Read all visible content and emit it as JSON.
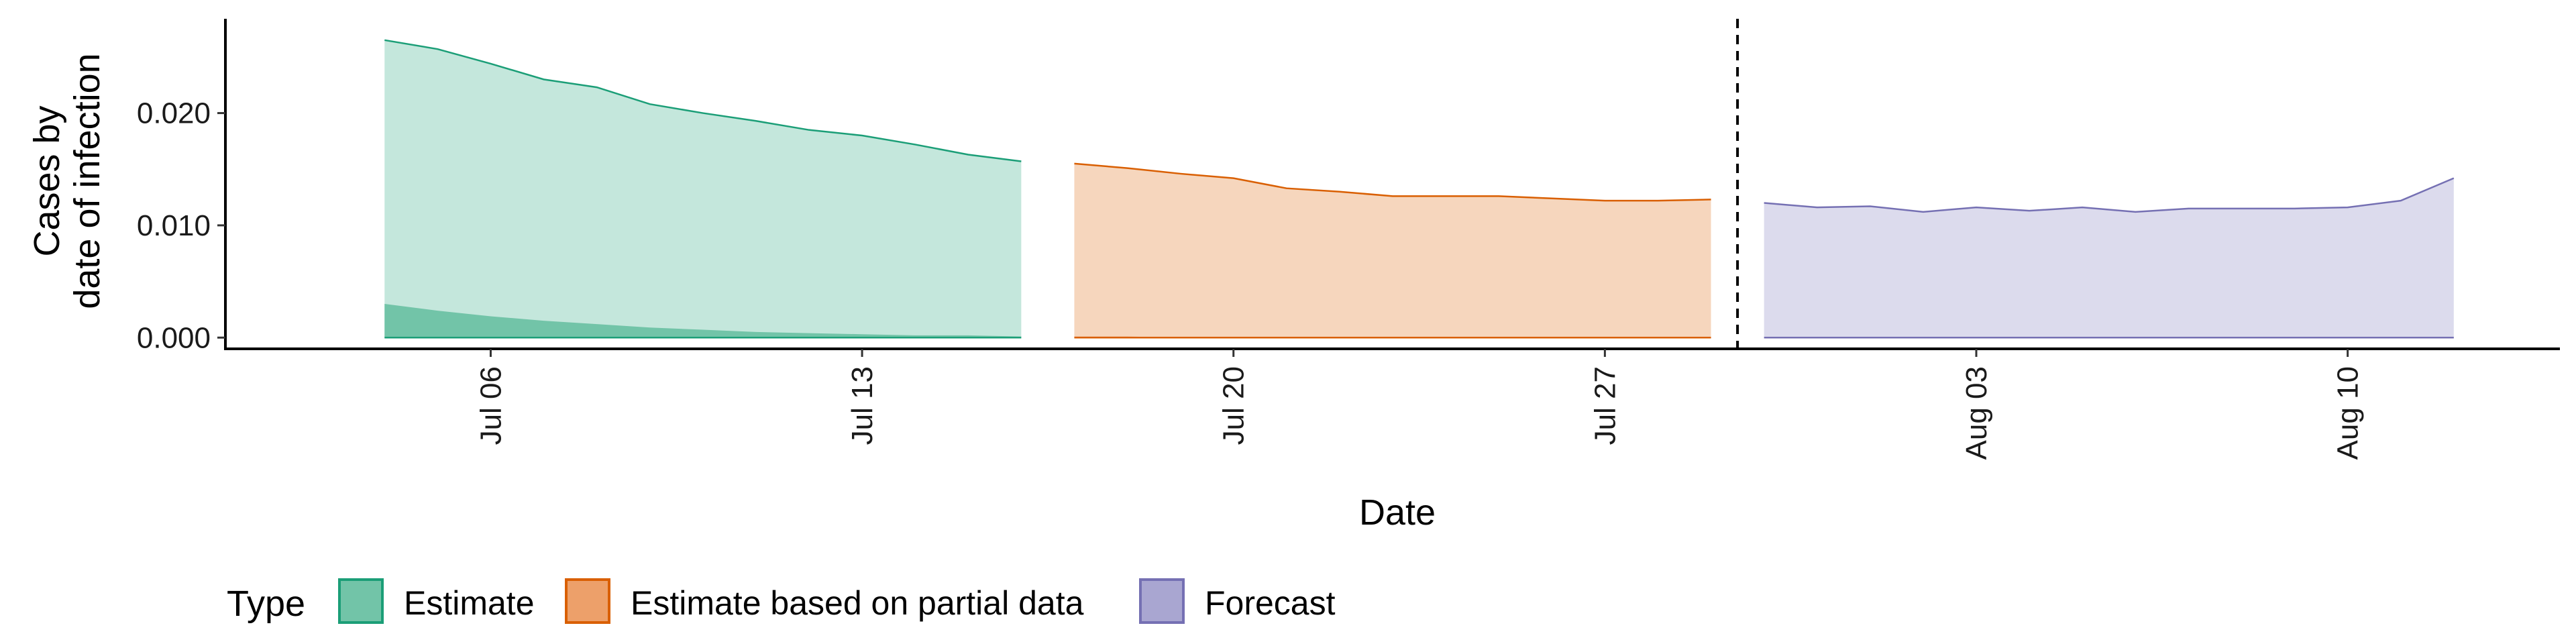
{
  "chart_data": {
    "type": "area",
    "xlabel": "Date",
    "ylabel_lines": [
      "Cases by",
      "date of infection"
    ],
    "y_ticks": [
      0.0,
      0.01,
      0.02
    ],
    "y_tick_labels": [
      "0.000",
      "0.010",
      "0.020"
    ],
    "ylim": [
      -0.001,
      0.0284
    ],
    "x_ticks": [
      "2020-07-06",
      "2020-07-13",
      "2020-07-20",
      "2020-07-27",
      "2020-08-03",
      "2020-08-10"
    ],
    "x_tick_labels": [
      "Jul 06",
      "Jul 13",
      "Jul 20",
      "Jul 27",
      "Aug 03",
      "Aug 10"
    ],
    "xlim": [
      "2020-07-01",
      "2020-08-14"
    ],
    "forecast_cutoff": "2020-07-29",
    "legend_title": "Type",
    "legend_position": "bottom",
    "series": [
      {
        "name": "Estimate",
        "color": "#1b9e77",
        "fill": "#c4e7dc",
        "inner_fill": "#72c4a8",
        "dates": [
          "2020-07-04",
          "2020-07-05",
          "2020-07-06",
          "2020-07-07",
          "2020-07-08",
          "2020-07-09",
          "2020-07-10",
          "2020-07-11",
          "2020-07-12",
          "2020-07-13",
          "2020-07-14",
          "2020-07-15",
          "2020-07-16"
        ],
        "upper": [
          0.0265,
          0.0257,
          0.0244,
          0.023,
          0.0223,
          0.0208,
          0.02,
          0.0193,
          0.0185,
          0.018,
          0.0172,
          0.0163,
          0.0157
        ],
        "inner_upper": [
          0.003,
          0.0024,
          0.0019,
          0.0015,
          0.0012,
          0.0009,
          0.0007,
          0.0005,
          0.0004,
          0.0003,
          0.0002,
          0.0002,
          0.0001
        ]
      },
      {
        "name": "Estimate based on partial data",
        "color": "#d95f02",
        "fill": "#f6d6bd",
        "inner_fill": "#eda06a",
        "dates": [
          "2020-07-17",
          "2020-07-18",
          "2020-07-19",
          "2020-07-20",
          "2020-07-21",
          "2020-07-22",
          "2020-07-23",
          "2020-07-24",
          "2020-07-25",
          "2020-07-26",
          "2020-07-27",
          "2020-07-28",
          "2020-07-29"
        ],
        "upper": [
          0.0155,
          0.0151,
          0.0146,
          0.0142,
          0.0133,
          0.013,
          0.0126,
          0.0126,
          0.0126,
          0.0124,
          0.0122,
          0.0122,
          0.0123
        ],
        "inner_upper": [
          0.0001,
          0.0001,
          0.0,
          0.0,
          0.0,
          0.0,
          0.0,
          0.0,
          0.0,
          0.0,
          0.0,
          0.0,
          0.0
        ]
      },
      {
        "name": "Forecast",
        "color": "#7570b3",
        "fill": "#dcdbed",
        "inner_fill": "#a9a6d1",
        "dates": [
          "2020-07-30",
          "2020-07-31",
          "2020-08-01",
          "2020-08-02",
          "2020-08-03",
          "2020-08-04",
          "2020-08-05",
          "2020-08-06",
          "2020-08-07",
          "2020-08-08",
          "2020-08-09",
          "2020-08-10",
          "2020-08-11",
          "2020-08-12"
        ],
        "upper": [
          0.012,
          0.0116,
          0.0117,
          0.0112,
          0.0116,
          0.0113,
          0.0116,
          0.0112,
          0.0115,
          0.0115,
          0.0115,
          0.0116,
          0.0122,
          0.0142
        ],
        "inner_upper": [
          0.0,
          0.0,
          0.0,
          0.0,
          0.0,
          0.0,
          0.0,
          0.0,
          0.0,
          0.0,
          0.0,
          0.0,
          0.0,
          0.0
        ]
      }
    ]
  }
}
